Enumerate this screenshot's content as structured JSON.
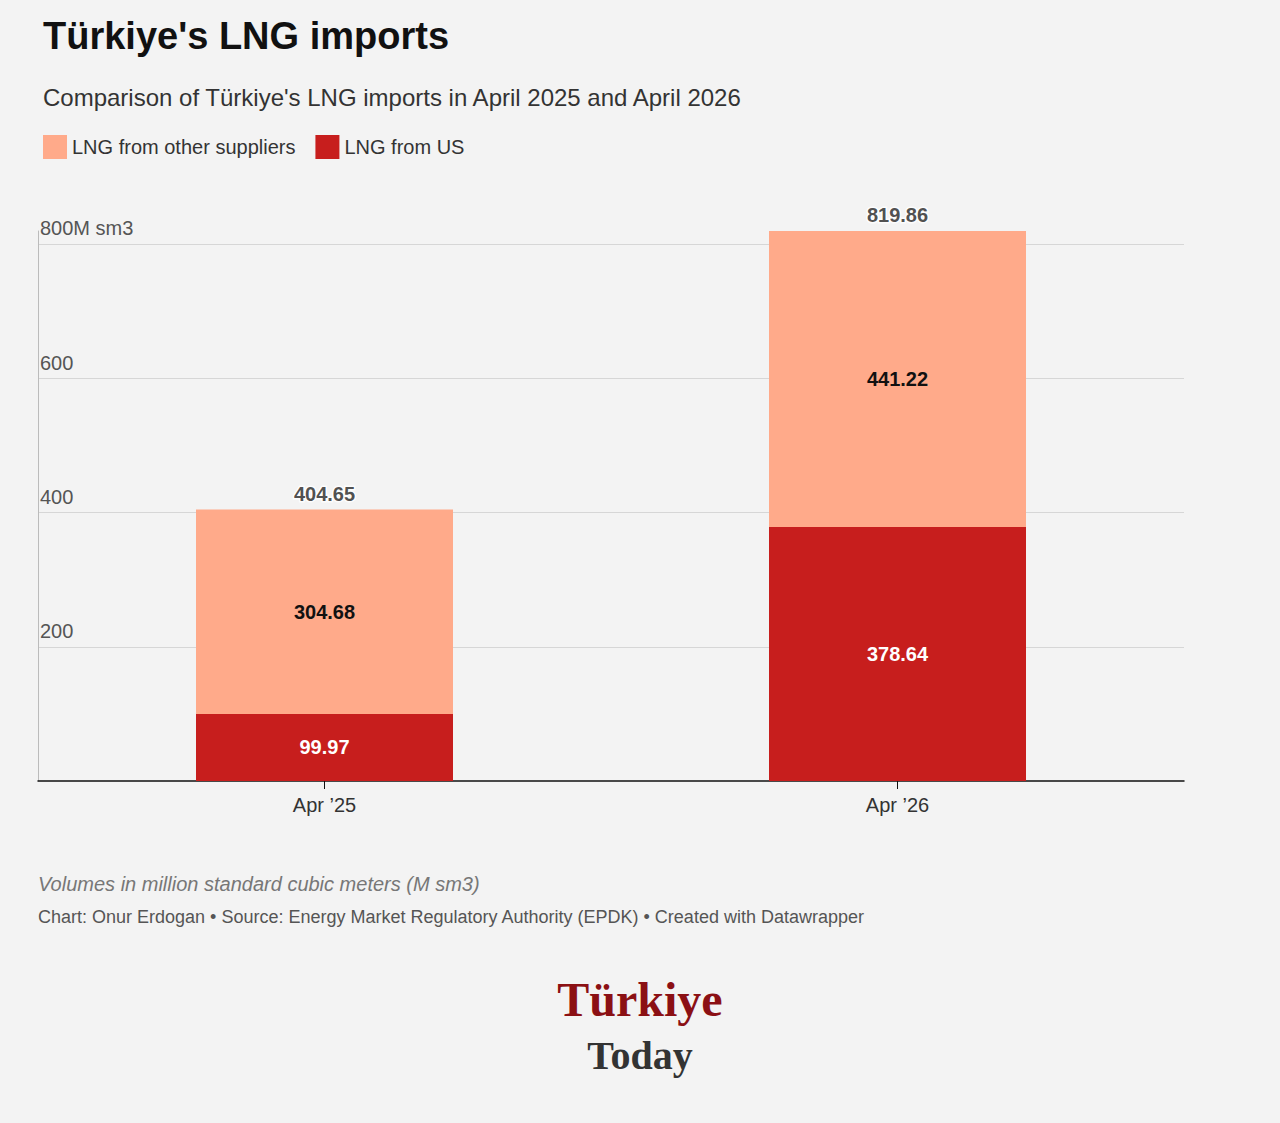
{
  "chart_data": {
    "type": "bar",
    "title": "Türkiye's LNG imports",
    "subtitle": "Comparison of Türkiye's LNG imports in April 2025 and April 2026",
    "categories": [
      "Apr ’25",
      "Apr ’26"
    ],
    "series": [
      {
        "name": "LNG from other suppliers",
        "color": "#ffaa8a",
        "values": [
          304.68,
          441.22
        ]
      },
      {
        "name": "LNG from US",
        "color": "#c71e1d",
        "values": [
          99.97,
          378.64
        ]
      }
    ],
    "totals": [
      404.65,
      819.86
    ],
    "stacked": true,
    "data_labels": true,
    "ylim": [
      0,
      820
    ],
    "yticks": [
      200,
      400,
      600,
      {
        "value": 800,
        "label": "800M sm3"
      }
    ],
    "grid": true,
    "legend": "top-left",
    "note": "Volumes in million standard cubic meters (M sm3)",
    "source": "Chart: Onur Erdogan • Source: Energy Market Regulatory Authority (EPDK) • Created with Datawrapper",
    "logo": [
      "Türkiye",
      "Today"
    ]
  }
}
